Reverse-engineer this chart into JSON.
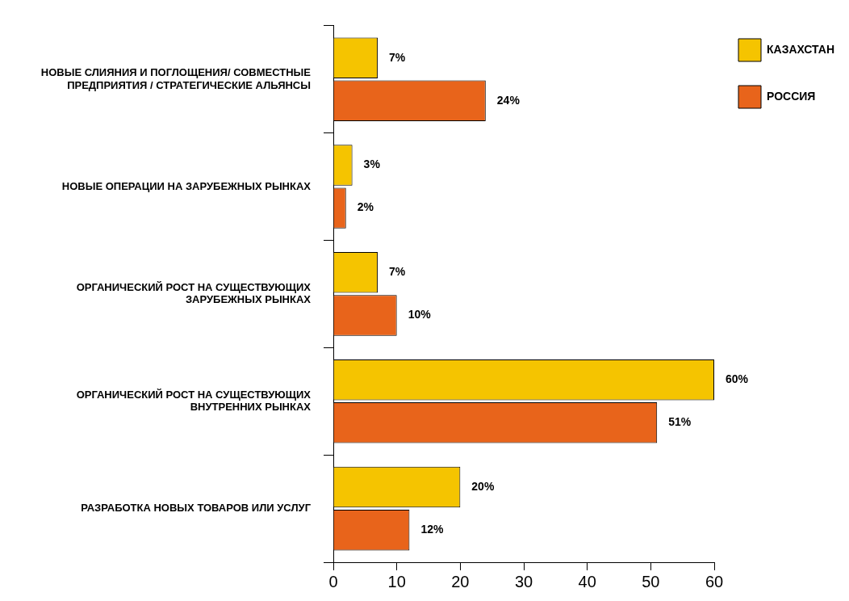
{
  "chart_data": {
    "type": "bar",
    "orientation": "horizontal",
    "categories": [
      "НОВЫЕ СЛИЯНИЯ И ПОГЛОЩЕНИЯ/ СОВМЕСТНЫЕ ПРЕДПРИЯТИЯ / СТРАТЕГИЧЕСКИЕ АЛЬЯНСЫ",
      "НОВЫЕ ОПЕРАЦИИ НА ЗАРУБЕЖНЫХ РЫНКАХ",
      "ОРГАНИЧЕСКИЙ РОСТ НА СУЩЕСТВУЮЩИХ ЗАРУБЕЖНЫХ РЫНКАХ",
      "ОРГАНИЧЕСКИЙ РОСТ НА СУЩЕСТВУЮЩИХ ВНУТРЕННИХ РЫНКАХ",
      "РАЗРАБОТКА НОВЫХ ТОВАРОВ ИЛИ УСЛУГ"
    ],
    "series": [
      {
        "name": "КАЗАХСТАН",
        "color": "#f5c400",
        "values": [
          7,
          3,
          7,
          60,
          20
        ],
        "value_labels": [
          "7%",
          "3%",
          "7%",
          "60%",
          "20%"
        ]
      },
      {
        "name": "РОССИЯ",
        "color": "#e8641b",
        "values": [
          24,
          2,
          10,
          51,
          12
        ],
        "value_labels": [
          "24%",
          "2%",
          "10%",
          "51%",
          "12%"
        ]
      }
    ],
    "xlim": [
      0,
      60
    ],
    "xticks": [
      0,
      10,
      20,
      30,
      40,
      50,
      60
    ],
    "grid": false,
    "legend": "top right"
  }
}
